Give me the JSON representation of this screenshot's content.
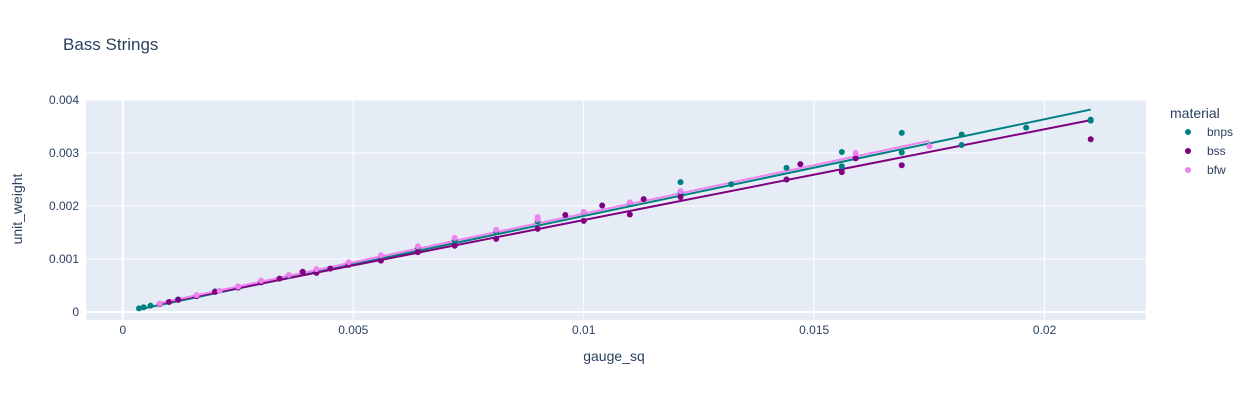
{
  "chart_data": {
    "type": "scatter",
    "title": "Bass Strings",
    "xlabel": "gauge_sq",
    "ylabel": "unit_weight",
    "xlim": [
      -0.0008,
      0.0222
    ],
    "ylim": [
      -0.00015,
      0.004
    ],
    "x_ticks": [
      0,
      0.005,
      0.01,
      0.015,
      0.02
    ],
    "x_tick_labels": [
      "0",
      "0.005",
      "0.01",
      "0.015",
      "0.02"
    ],
    "y_ticks": [
      0,
      0.001,
      0.002,
      0.003,
      0.004
    ],
    "y_tick_labels": [
      "0",
      "0.001",
      "0.002",
      "0.003",
      "0.004"
    ],
    "grid": true,
    "legend_title": "material",
    "legend_position": "right",
    "colors": {
      "plot_bg": "#e5ecf6",
      "grid": "#ffffff",
      "text": "#2a3f5f"
    },
    "series": [
      {
        "name": "bnps",
        "color": "#008080",
        "points": [
          [
            0.00035,
            7e-05
          ],
          [
            0.00045,
            9e-05
          ],
          [
            0.0006,
            0.00012
          ],
          [
            0.0008,
            0.00016
          ],
          [
            0.0012,
            0.00024
          ],
          [
            0.0016,
            0.00031
          ],
          [
            0.002,
            0.00039
          ],
          [
            0.0025,
            0.00048
          ],
          [
            0.003,
            0.00057
          ],
          [
            0.0036,
            0.00068
          ],
          [
            0.0042,
            0.00079
          ],
          [
            0.0049,
            0.00092
          ],
          [
            0.0056,
            0.00106
          ],
          [
            0.0064,
            0.00121
          ],
          [
            0.0072,
            0.00136
          ],
          [
            0.0081,
            0.00152
          ],
          [
            0.009,
            0.00171
          ],
          [
            0.01,
            0.00188
          ],
          [
            0.011,
            0.00206
          ],
          [
            0.0121,
            0.00245
          ],
          [
            0.0121,
            0.00225
          ],
          [
            0.0132,
            0.00241
          ],
          [
            0.0144,
            0.00272
          ],
          [
            0.0144,
            0.0025
          ],
          [
            0.0156,
            0.00302
          ],
          [
            0.0156,
            0.00275
          ],
          [
            0.0169,
            0.00338
          ],
          [
            0.0169,
            0.00301
          ],
          [
            0.0182,
            0.00335
          ],
          [
            0.0182,
            0.00315
          ],
          [
            0.0196,
            0.00348
          ],
          [
            0.021,
            0.00363
          ],
          [
            0.021,
            0.00361
          ]
        ],
        "fit_line": [
          [
            0.00035,
            5e-05
          ],
          [
            0.021,
            0.00382
          ]
        ]
      },
      {
        "name": "bss",
        "color": "#800080",
        "points": [
          [
            0.0008,
            0.00015
          ],
          [
            0.001,
            0.00019
          ],
          [
            0.0012,
            0.00023
          ],
          [
            0.0016,
            0.0003
          ],
          [
            0.002,
            0.00038
          ],
          [
            0.0025,
            0.00046
          ],
          [
            0.003,
            0.00056
          ],
          [
            0.0034,
            0.00063
          ],
          [
            0.0036,
            0.00069
          ],
          [
            0.0039,
            0.00076
          ],
          [
            0.0042,
            0.00074
          ],
          [
            0.0045,
            0.00082
          ],
          [
            0.0049,
            0.00089
          ],
          [
            0.0056,
            0.00097
          ],
          [
            0.0064,
            0.00113
          ],
          [
            0.0072,
            0.00125
          ],
          [
            0.0081,
            0.00138
          ],
          [
            0.009,
            0.00157
          ],
          [
            0.0096,
            0.00183
          ],
          [
            0.01,
            0.00172
          ],
          [
            0.0104,
            0.00201
          ],
          [
            0.011,
            0.00184
          ],
          [
            0.0113,
            0.00213
          ],
          [
            0.0121,
            0.00217
          ],
          [
            0.0144,
            0.0025
          ],
          [
            0.0147,
            0.00279
          ],
          [
            0.0156,
            0.00264
          ],
          [
            0.0159,
            0.0029
          ],
          [
            0.0169,
            0.00277
          ],
          [
            0.021,
            0.00326
          ]
        ],
        "fit_line": [
          [
            0.0008,
            0.00016
          ],
          [
            0.021,
            0.00362
          ]
        ]
      },
      {
        "name": "bfw",
        "color": "#ee82ee",
        "points": [
          [
            0.0008,
            0.00016
          ],
          [
            0.0016,
            0.00032
          ],
          [
            0.0021,
            0.0004
          ],
          [
            0.0025,
            0.00048
          ],
          [
            0.003,
            0.00059
          ],
          [
            0.0036,
            0.0007
          ],
          [
            0.0042,
            0.00081
          ],
          [
            0.0049,
            0.00094
          ],
          [
            0.0056,
            0.00107
          ],
          [
            0.0064,
            0.00124
          ],
          [
            0.0072,
            0.0014
          ],
          [
            0.0081,
            0.00155
          ],
          [
            0.009,
            0.00179
          ],
          [
            0.009,
            0.00175
          ],
          [
            0.01,
            0.00189
          ],
          [
            0.011,
            0.00207
          ],
          [
            0.0121,
            0.00228
          ],
          [
            0.0159,
            0.003
          ],
          [
            0.0175,
            0.00313
          ]
        ],
        "fit_line": [
          [
            0.0008,
            0.00017
          ],
          [
            0.0175,
            0.00323
          ]
        ]
      }
    ]
  }
}
